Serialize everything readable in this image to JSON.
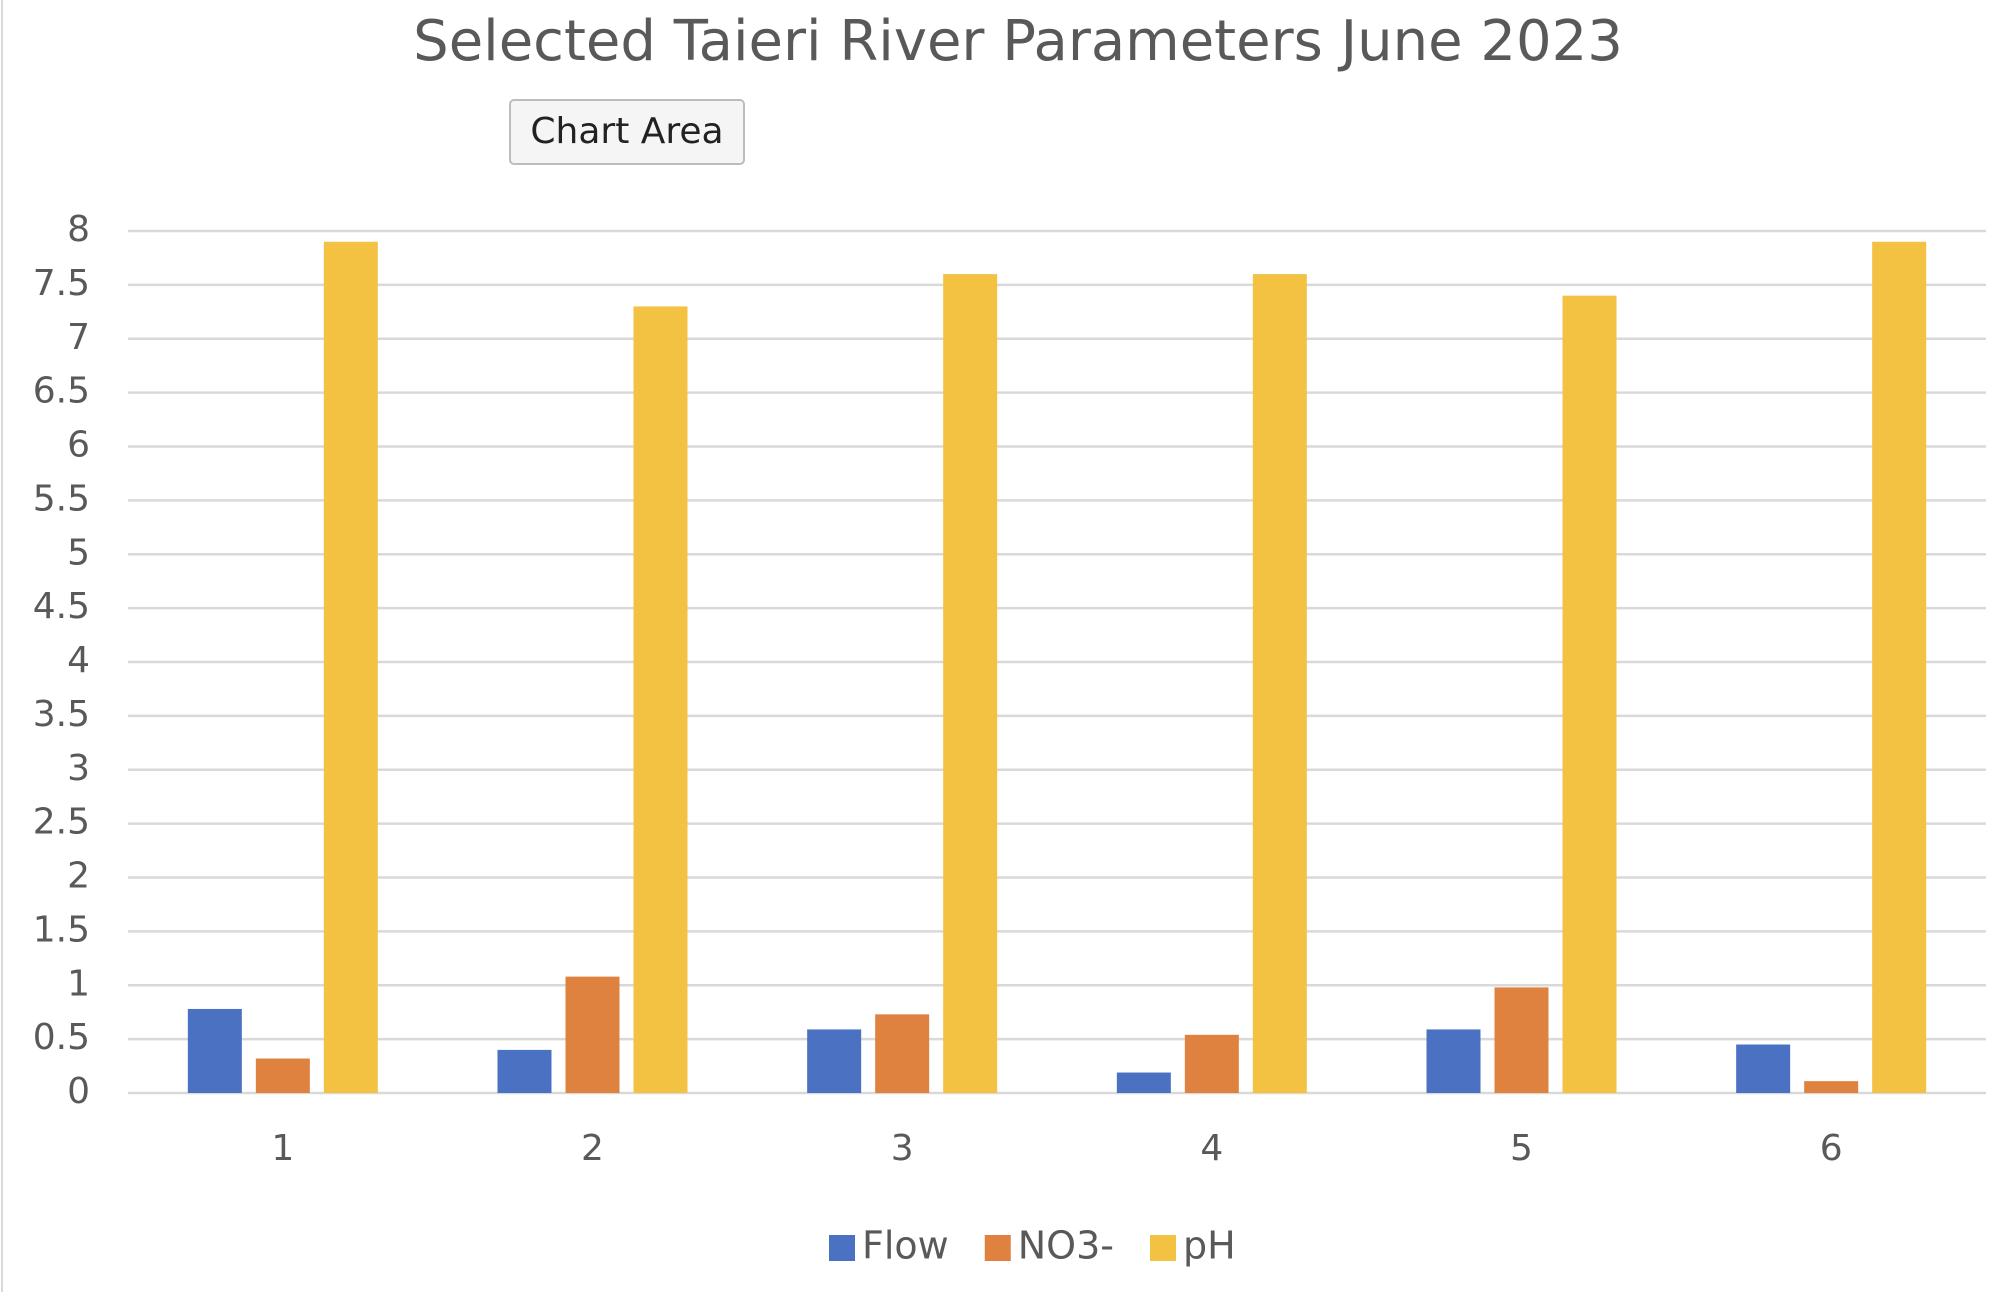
{
  "chart_data": {
    "type": "bar",
    "title": "Selected Taieri River Parameters June 2023",
    "tooltip": "Chart Area",
    "categories": [
      "1",
      "2",
      "3",
      "4",
      "5",
      "6"
    ],
    "series": [
      {
        "name": "Flow",
        "color": "#4a71c2",
        "values": [
          0.78,
          0.4,
          0.59,
          0.19,
          0.59,
          0.45
        ]
      },
      {
        "name": "NO3-",
        "color": "#e0823f",
        "values": [
          0.32,
          1.08,
          0.73,
          0.54,
          0.98,
          0.11
        ]
      },
      {
        "name": "pH",
        "color": "#f3c242",
        "values": [
          7.9,
          7.3,
          7.6,
          7.6,
          7.4,
          7.9
        ]
      }
    ],
    "ylim": [
      0,
      8
    ],
    "yticks": [
      0,
      0.5,
      1,
      1.5,
      2,
      2.5,
      3,
      3.5,
      4,
      4.5,
      5,
      5.5,
      6,
      6.5,
      7,
      7.5,
      8
    ],
    "grid": true,
    "legend": "bottom"
  }
}
